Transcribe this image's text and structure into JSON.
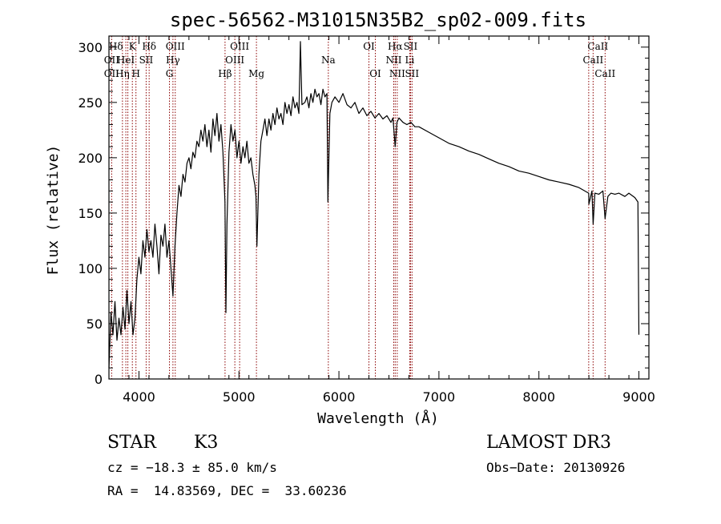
{
  "chart_data": {
    "type": "line",
    "title": "spec-56562-M31015N35B2_sp02-009.fits",
    "xlabel": "Wavelength (Å)",
    "ylabel": "Flux (relative)",
    "xlim": [
      3700,
      9100
    ],
    "ylim": [
      0,
      310
    ],
    "xticks": [
      4000,
      5000,
      6000,
      7000,
      8000,
      9000
    ],
    "yticks": [
      0,
      50,
      100,
      150,
      200,
      250,
      300
    ],
    "grid": false,
    "series": [
      {
        "color": "#000000",
        "points": [
          [
            3700,
            10
          ],
          [
            3720,
            60
          ],
          [
            3740,
            40
          ],
          [
            3760,
            70
          ],
          [
            3780,
            35
          ],
          [
            3800,
            55
          ],
          [
            3820,
            40
          ],
          [
            3840,
            65
          ],
          [
            3860,
            45
          ],
          [
            3880,
            80
          ],
          [
            3900,
            50
          ],
          [
            3920,
            70
          ],
          [
            3940,
            40
          ],
          [
            3960,
            55
          ],
          [
            3980,
            90
          ],
          [
            4000,
            110
          ],
          [
            4020,
            95
          ],
          [
            4040,
            125
          ],
          [
            4060,
            110
          ],
          [
            4080,
            135
          ],
          [
            4100,
            115
          ],
          [
            4120,
            125
          ],
          [
            4140,
            110
          ],
          [
            4160,
            140
          ],
          [
            4180,
            120
          ],
          [
            4200,
            95
          ],
          [
            4220,
            130
          ],
          [
            4240,
            120
          ],
          [
            4260,
            140
          ],
          [
            4280,
            110
          ],
          [
            4300,
            125
          ],
          [
            4320,
            100
          ],
          [
            4340,
            75
          ],
          [
            4360,
            120
          ],
          [
            4380,
            150
          ],
          [
            4400,
            175
          ],
          [
            4420,
            165
          ],
          [
            4440,
            185
          ],
          [
            4460,
            178
          ],
          [
            4480,
            195
          ],
          [
            4500,
            200
          ],
          [
            4520,
            190
          ],
          [
            4540,
            205
          ],
          [
            4560,
            200
          ],
          [
            4580,
            215
          ],
          [
            4600,
            210
          ],
          [
            4620,
            225
          ],
          [
            4640,
            215
          ],
          [
            4660,
            230
          ],
          [
            4680,
            210
          ],
          [
            4700,
            225
          ],
          [
            4720,
            205
          ],
          [
            4740,
            235
          ],
          [
            4760,
            220
          ],
          [
            4780,
            240
          ],
          [
            4800,
            215
          ],
          [
            4820,
            230
          ],
          [
            4840,
            205
          ],
          [
            4860,
            160
          ],
          [
            4870,
            60
          ],
          [
            4880,
            140
          ],
          [
            4900,
            205
          ],
          [
            4920,
            230
          ],
          [
            4940,
            215
          ],
          [
            4960,
            225
          ],
          [
            4980,
            200
          ],
          [
            5000,
            215
          ],
          [
            5020,
            195
          ],
          [
            5040,
            210
          ],
          [
            5060,
            200
          ],
          [
            5080,
            215
          ],
          [
            5100,
            195
          ],
          [
            5120,
            200
          ],
          [
            5140,
            185
          ],
          [
            5160,
            175
          ],
          [
            5170,
            165
          ],
          [
            5180,
            120
          ],
          [
            5200,
            185
          ],
          [
            5220,
            215
          ],
          [
            5240,
            225
          ],
          [
            5260,
            235
          ],
          [
            5280,
            220
          ],
          [
            5300,
            235
          ],
          [
            5320,
            225
          ],
          [
            5340,
            240
          ],
          [
            5360,
            230
          ],
          [
            5380,
            245
          ],
          [
            5400,
            235
          ],
          [
            5420,
            240
          ],
          [
            5440,
            230
          ],
          [
            5460,
            250
          ],
          [
            5480,
            240
          ],
          [
            5500,
            248
          ],
          [
            5520,
            238
          ],
          [
            5540,
            255
          ],
          [
            5560,
            245
          ],
          [
            5580,
            250
          ],
          [
            5600,
            240
          ],
          [
            5615,
            305
          ],
          [
            5630,
            248
          ],
          [
            5660,
            250
          ],
          [
            5680,
            255
          ],
          [
            5700,
            245
          ],
          [
            5720,
            258
          ],
          [
            5740,
            250
          ],
          [
            5760,
            262
          ],
          [
            5780,
            255
          ],
          [
            5800,
            258
          ],
          [
            5820,
            248
          ],
          [
            5840,
            262
          ],
          [
            5860,
            255
          ],
          [
            5880,
            258
          ],
          [
            5890,
            160
          ],
          [
            5910,
            240
          ],
          [
            5930,
            250
          ],
          [
            5960,
            255
          ],
          [
            6000,
            250
          ],
          [
            6040,
            258
          ],
          [
            6080,
            248
          ],
          [
            6120,
            245
          ],
          [
            6160,
            250
          ],
          [
            6200,
            240
          ],
          [
            6240,
            245
          ],
          [
            6280,
            238
          ],
          [
            6320,
            242
          ],
          [
            6360,
            236
          ],
          [
            6400,
            240
          ],
          [
            6440,
            235
          ],
          [
            6480,
            238
          ],
          [
            6520,
            232
          ],
          [
            6540,
            236
          ],
          [
            6563,
            210
          ],
          [
            6580,
            232
          ],
          [
            6600,
            236
          ],
          [
            6640,
            232
          ],
          [
            6680,
            230
          ],
          [
            6720,
            232
          ],
          [
            6760,
            228
          ],
          [
            6800,
            228
          ],
          [
            6900,
            223
          ],
          [
            7000,
            218
          ],
          [
            7100,
            213
          ],
          [
            7200,
            210
          ],
          [
            7300,
            206
          ],
          [
            7400,
            203
          ],
          [
            7500,
            199
          ],
          [
            7600,
            195
          ],
          [
            7700,
            192
          ],
          [
            7800,
            188
          ],
          [
            7900,
            186
          ],
          [
            8000,
            183
          ],
          [
            8100,
            180
          ],
          [
            8200,
            178
          ],
          [
            8300,
            176
          ],
          [
            8400,
            173
          ],
          [
            8498,
            168
          ],
          [
            8500,
            158
          ],
          [
            8530,
            170
          ],
          [
            8542,
            140
          ],
          [
            8560,
            168
          ],
          [
            8600,
            167
          ],
          [
            8640,
            170
          ],
          [
            8662,
            145
          ],
          [
            8690,
            165
          ],
          [
            8720,
            168
          ],
          [
            8760,
            167
          ],
          [
            8800,
            168
          ],
          [
            8860,
            165
          ],
          [
            8900,
            168
          ],
          [
            8960,
            164
          ],
          [
            8990,
            160
          ],
          [
            9000,
            40
          ]
        ]
      }
    ],
    "lines": [
      {
        "wavelength": 3727,
        "labels": [
          "OII"
        ]
      },
      {
        "wavelength": 3835,
        "labels": [
          "H&#x3B7;"
        ]
      },
      {
        "wavelength": 3869,
        "labels": [
          "HeI"
        ]
      },
      {
        "wavelength": 3889,
        "labels": [
          "H&#x3B6;"
        ]
      },
      {
        "wavelength": 3934,
        "labels": [
          "K"
        ]
      },
      {
        "wavelength": 3970,
        "labels": [
          "H"
        ]
      },
      {
        "wavelength": 4072,
        "labels": [
          "SII"
        ]
      },
      {
        "wavelength": 4102,
        "labels": [
          "H&#x3B4;"
        ]
      },
      {
        "wavelength": 4305,
        "labels": [
          "G"
        ]
      },
      {
        "wavelength": 4340,
        "labels": [
          "H&#x3B3;"
        ]
      },
      {
        "wavelength": 4363,
        "labels": [
          "OIII"
        ]
      },
      {
        "wavelength": 4861,
        "labels": [
          "H&#x3B2;"
        ]
      },
      {
        "wavelength": 4959,
        "labels": [
          "OIII"
        ]
      },
      {
        "wavelength": 5007,
        "labels": [
          "OIII"
        ]
      },
      {
        "wavelength": 5175,
        "labels": [
          "Mg"
        ]
      },
      {
        "wavelength": 5894,
        "labels": [
          "Na"
        ]
      },
      {
        "wavelength": 6300,
        "labels": [
          "OI"
        ]
      },
      {
        "wavelength": 6364,
        "labels": [
          "OI"
        ]
      },
      {
        "wavelength": 6548,
        "labels": [
          "NII"
        ]
      },
      {
        "wavelength": 6563,
        "labels": [
          "H&#x3B1;"
        ]
      },
      {
        "wavelength": 6583,
        "labels": [
          "NII"
        ]
      },
      {
        "wavelength": 6708,
        "labels": [
          "Li"
        ]
      },
      {
        "wavelength": 6716,
        "labels": [
          "SII"
        ]
      },
      {
        "wavelength": 6731,
        "labels": [
          "SII"
        ]
      },
      {
        "wavelength": 8498,
        "labels": [
          "CaII"
        ]
      },
      {
        "wavelength": 8542,
        "labels": [
          "CaII"
        ]
      },
      {
        "wavelength": 8662,
        "labels": [
          "CaII"
        ]
      }
    ],
    "line_labels": [
      {
        "text": "H&#x3B4;",
        "row": 0,
        "wavelength": 3770
      },
      {
        "text": "K",
        "row": 0,
        "wavelength": 3934
      },
      {
        "text": "H&#x3B4;",
        "row": 0,
        "wavelength": 4102
      },
      {
        "text": "OIII",
        "row": 0,
        "wavelength": 4363
      },
      {
        "text": "OIII",
        "row": 0,
        "wavelength": 5007
      },
      {
        "text": "OI",
        "row": 0,
        "wavelength": 6300
      },
      {
        "text": "H&#x3B1;",
        "row": 0,
        "wavelength": 6563
      },
      {
        "text": "SII",
        "row": 0,
        "wavelength": 6716
      },
      {
        "text": "CaII",
        "row": 0,
        "wavelength": 8590
      },
      {
        "text": "OII",
        "row": 1,
        "wavelength": 3727
      },
      {
        "text": "HeI",
        "row": 1,
        "wavelength": 3869
      },
      {
        "text": "SII",
        "row": 1,
        "wavelength": 4072
      },
      {
        "text": "H&#x3B3;",
        "row": 1,
        "wavelength": 4340
      },
      {
        "text": "OIII",
        "row": 1,
        "wavelength": 4959
      },
      {
        "text": "Na",
        "row": 1,
        "wavelength": 5894
      },
      {
        "text": "NII",
        "row": 1,
        "wavelength": 6548
      },
      {
        "text": "Li",
        "row": 1,
        "wavelength": 6708
      },
      {
        "text": "CaII",
        "row": 1,
        "wavelength": 8542
      },
      {
        "text": "OII",
        "row": 2,
        "wavelength": 3727
      },
      {
        "text": "H&#x3B7;",
        "row": 2,
        "wavelength": 3835
      },
      {
        "text": "H",
        "row": 2,
        "wavelength": 3970
      },
      {
        "text": "G",
        "row": 2,
        "wavelength": 4305
      },
      {
        "text": "H&#x3B2;",
        "row": 2,
        "wavelength": 4861
      },
      {
        "text": "Mg",
        "row": 2,
        "wavelength": 5175
      },
      {
        "text": "OI",
        "row": 2,
        "wavelength": 6364
      },
      {
        "text": "NII",
        "row": 2,
        "wavelength": 6583
      },
      {
        "text": "SII",
        "row": 2,
        "wavelength": 6731
      },
      {
        "text": "CaII",
        "row": 2,
        "wavelength": 8662
      }
    ],
    "line_color": "#8b0000"
  },
  "info": {
    "object_class": "STAR",
    "subclass": "K3",
    "survey": "LAMOST DR3",
    "cz": "cz = −18.3 ± 85.0 km/s",
    "obs_date": "Obs−Date: 20130926",
    "coords": "RA =  14.83569, DEC =  33.60236"
  }
}
